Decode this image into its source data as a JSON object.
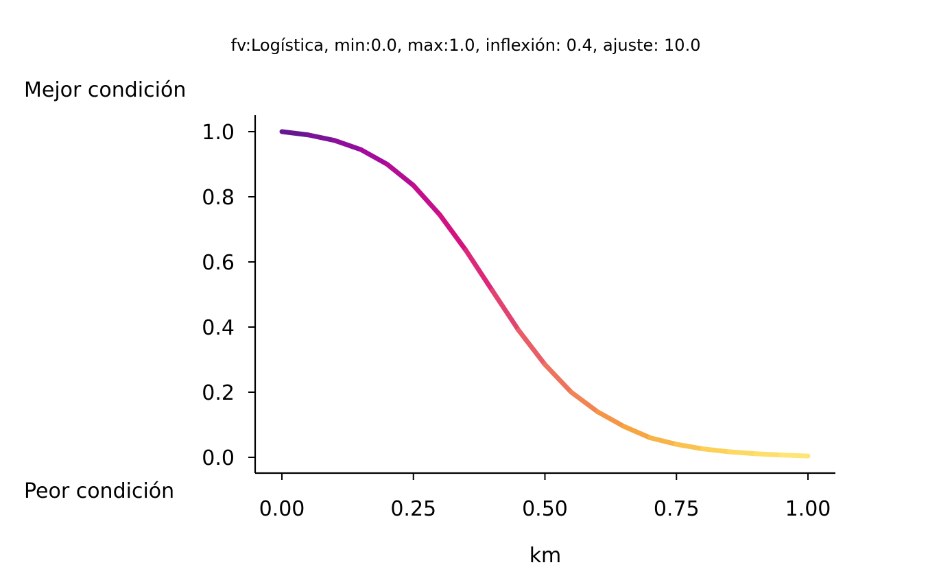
{
  "chart_data": {
    "type": "line",
    "title": "fv:Logística, min:0.0, max:1.0, inflexión: 0.4, ajuste: 10.0",
    "xlabel": "km",
    "ylabel": "",
    "top_label": "Mejor condición",
    "bottom_label": "Peor condición",
    "xlim": [
      0.0,
      1.0
    ],
    "ylim": [
      0.0,
      1.0
    ],
    "x_ticks": [
      "0.00",
      "0.25",
      "0.50",
      "0.75",
      "1.00"
    ],
    "y_ticks": [
      "0.0",
      "0.2",
      "0.4",
      "0.6",
      "0.8",
      "1.0"
    ],
    "grid": false,
    "colormap": [
      "#0d0887",
      "#7e03a8",
      "#cc4778",
      "#f89540",
      "#f0f921"
    ],
    "series": [
      {
        "x": [
          0.0,
          0.05,
          0.1,
          0.15,
          0.2,
          0.25,
          0.3,
          0.35,
          0.4,
          0.45,
          0.5,
          0.55,
          0.6,
          0.65,
          0.7,
          0.75,
          0.8,
          0.85,
          0.9,
          0.95,
          1.0
        ],
        "values": [
          1.0,
          0.99,
          0.973,
          0.945,
          0.9,
          0.835,
          0.745,
          0.635,
          0.512,
          0.39,
          0.285,
          0.2,
          0.14,
          0.095,
          0.06,
          0.04,
          0.026,
          0.017,
          0.011,
          0.007,
          0.004
        ]
      }
    ]
  }
}
